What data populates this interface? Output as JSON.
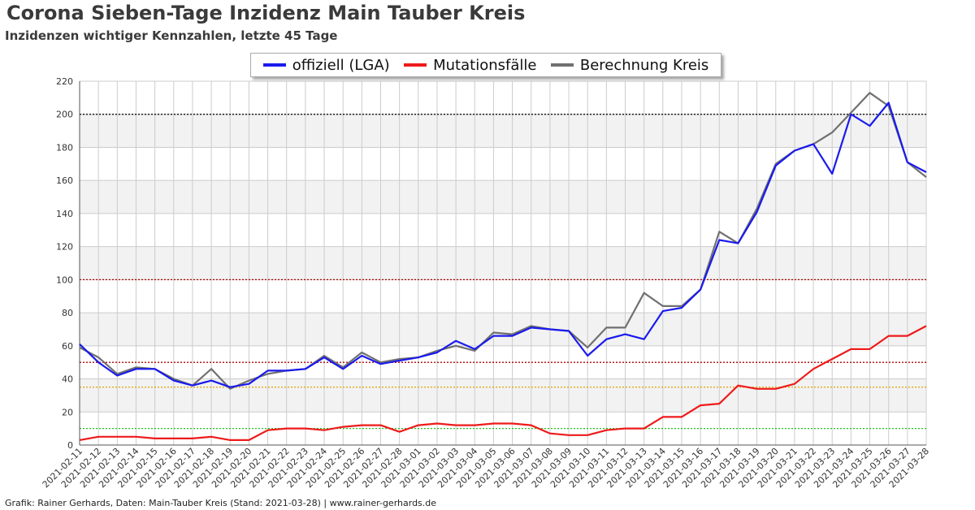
{
  "title": "Corona Sieben-Tage Inzidenz Main Tauber Kreis",
  "subtitle": "Inzidenzen wichtiger Kennzahlen, letzte 45 Tage",
  "footer": "Grafik: Rainer Gerhards, Daten: Main-Tauber Kreis (Stand: 2021-03-28) | www.rainer-gerhards.de",
  "colors": {
    "official": "#1a1aee",
    "mutation": "#ee1a1a",
    "computed": "#707070",
    "line200": "#000000",
    "line100": "#b00000",
    "line50": "#b00000",
    "line35": "#e0a000",
    "line10": "#20c020",
    "band": "#f2f2f2",
    "grid": "#cccccc"
  },
  "chart_data": {
    "type": "line",
    "title": "Corona Sieben-Tage Inzidenz Main Tauber Kreis",
    "subtitle": "Inzidenzen wichtiger Kennzahlen, letzte 45 Tage",
    "xlabel": "",
    "ylabel": "",
    "ylim": [
      0,
      220
    ],
    "yticks": [
      0,
      20,
      40,
      60,
      80,
      100,
      120,
      140,
      160,
      180,
      200,
      220
    ],
    "grid": true,
    "legend_position": "top-center",
    "reference_lines": [
      200,
      100,
      50,
      35,
      10
    ],
    "x": [
      "2021-02-11",
      "2021-02-12",
      "2021-02-13",
      "2021-02-14",
      "2021-02-15",
      "2021-02-16",
      "2021-02-17",
      "2021-02-18",
      "2021-02-19",
      "2021-02-20",
      "2021-02-21",
      "2021-02-22",
      "2021-02-23",
      "2021-02-24",
      "2021-02-25",
      "2021-02-26",
      "2021-02-27",
      "2021-02-28",
      "2021-03-01",
      "2021-03-02",
      "2021-03-03",
      "2021-03-04",
      "2021-03-05",
      "2021-03-06",
      "2021-03-07",
      "2021-03-08",
      "2021-03-09",
      "2021-03-10",
      "2021-03-11",
      "2021-03-12",
      "2021-03-13",
      "2021-03-14",
      "2021-03-15",
      "2021-03-16",
      "2021-03-17",
      "2021-03-18",
      "2021-03-19",
      "2021-03-20",
      "2021-03-21",
      "2021-03-22",
      "2021-03-23",
      "2021-03-24",
      "2021-03-25",
      "2021-03-26",
      "2021-03-27",
      "2021-03-28"
    ],
    "series": [
      {
        "name": "offiziell (LGA)",
        "values": [
          61,
          50,
          42,
          46,
          46,
          39,
          36,
          39,
          35,
          37,
          45,
          45,
          46,
          53,
          46,
          54,
          49,
          51,
          53,
          56,
          63,
          58,
          66,
          66,
          71,
          70,
          69,
          54,
          64,
          67,
          64,
          81,
          83,
          94,
          124,
          122,
          141,
          169,
          178,
          182,
          164,
          200,
          193,
          207,
          171,
          165
        ]
      },
      {
        "name": "Mutationsfälle",
        "values": [
          3,
          5,
          5,
          5,
          4,
          4,
          4,
          5,
          3,
          3,
          9,
          10,
          10,
          9,
          11,
          12,
          12,
          8,
          12,
          13,
          12,
          12,
          13,
          13,
          12,
          7,
          6,
          6,
          9,
          10,
          10,
          17,
          17,
          24,
          25,
          36,
          34,
          34,
          37,
          46,
          52,
          58,
          58,
          66,
          66,
          72
        ]
      },
      {
        "name": "Berechnung Kreis",
        "values": [
          59,
          53,
          43,
          47,
          46,
          40,
          36,
          46,
          34,
          39,
          43,
          45,
          46,
          54,
          47,
          56,
          50,
          52,
          53,
          57,
          60,
          57,
          68,
          67,
          72,
          70,
          69,
          59,
          71,
          71,
          92,
          84,
          84,
          94,
          129,
          122,
          143,
          170,
          178,
          182,
          189,
          201,
          213,
          205,
          171,
          162
        ]
      }
    ]
  }
}
